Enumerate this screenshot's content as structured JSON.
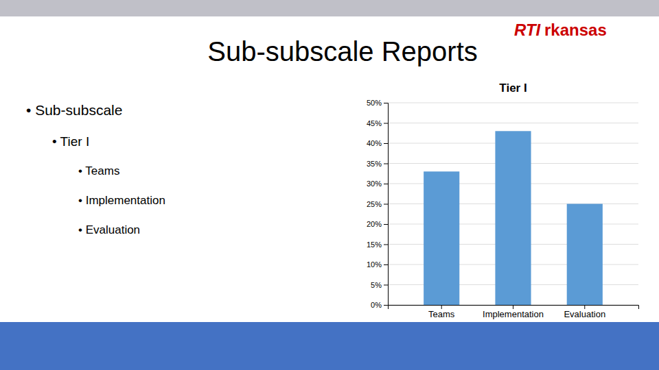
{
  "chart_data": {
    "type": "bar",
    "title": "Tier I",
    "categories": [
      "Teams",
      "Implementation",
      "Evaluation"
    ],
    "values": [
      0.33,
      0.43,
      0.25
    ],
    "color": "#5B9BD5",
    "ylim": [
      0,
      0.5
    ],
    "yticks": [
      {
        "value": 0.0,
        "label": "0%"
      },
      {
        "value": 0.05,
        "label": "5%"
      },
      {
        "value": 0.1,
        "label": "10%"
      },
      {
        "value": 0.15,
        "label": "15%"
      },
      {
        "value": 0.2,
        "label": "20%"
      },
      {
        "value": 0.25,
        "label": "25%"
      },
      {
        "value": 0.3,
        "label": "30%"
      },
      {
        "value": 0.35,
        "label": "35%"
      },
      {
        "value": 0.4,
        "label": "40%"
      },
      {
        "value": 0.45,
        "label": "45%"
      },
      {
        "value": 0.5,
        "label": "50%"
      }
    ],
    "grid": true,
    "annotations": [
      "Sub-subscale Reports",
      "RTI",
      "rkansas",
      "• Sub-subscale",
      "• Tier I",
      "• Teams",
      "• Implementation",
      "• Evaluation"
    ]
  }
}
